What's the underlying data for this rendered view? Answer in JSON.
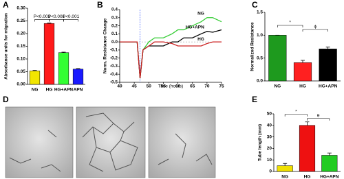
{
  "panel_labels": [
    "A",
    "B",
    "C",
    "D",
    "E"
  ],
  "chart_data": [
    {
      "type": "bar",
      "y_label": "Absorbance units for migration",
      "categories": [
        "NG",
        "HG",
        "HG+APN",
        "APN"
      ],
      "values": [
        0.053,
        0.24,
        0.125,
        0.06
      ],
      "errors": [
        0.002,
        0.002,
        0.002,
        0.002
      ],
      "colors": [
        "#f2e600",
        "#ff1a1a",
        "#33ff33",
        "#1a1aff"
      ],
      "ylim": [
        0,
        0.3
      ],
      "yticks": [
        {
          "value": 0,
          "label": "0.00"
        },
        0.05,
        {
          "value": 0.1,
          "label": "0.10"
        },
        0.15,
        {
          "value": 0.2,
          "label": "0.20"
        },
        0.25,
        {
          "value": 0.3,
          "label": "0.30"
        }
      ],
      "annotations": [
        "P<0.001",
        "P<0.001",
        "P<0.001"
      ]
    },
    {
      "type": "line",
      "y_label": "Norm. Resistance Change",
      "x_label": "Time (hours)",
      "x": [
        40,
        42,
        44,
        46,
        47,
        48,
        50,
        52,
        55,
        58,
        60,
        62,
        65,
        68,
        70,
        72,
        75
      ],
      "series": [
        {
          "name": "NG",
          "color": "#33cc33",
          "values": [
            0,
            0,
            0,
            0,
            -0.45,
            -0.1,
            0,
            0.05,
            0.05,
            0.1,
            0.15,
            0.15,
            0.2,
            0.25,
            0.3,
            0.3,
            0.25
          ]
        },
        {
          "name": "HG+APN",
          "color": "#000000",
          "values": [
            0,
            0,
            0,
            0,
            -0.45,
            -0.1,
            -0.05,
            -0.05,
            -0.05,
            0,
            0,
            0.05,
            0.05,
            0.1,
            0.13,
            0.12,
            0.15
          ]
        },
        {
          "name": "HG",
          "color": "#cc2222",
          "values": [
            0,
            0,
            0,
            0,
            -0.45,
            -0.1,
            -0.05,
            0,
            0,
            -0.02,
            -0.05,
            -0.05,
            -0.05,
            -0.05,
            -0.02,
            0,
            0
          ]
        }
      ],
      "vline": 47,
      "xlim": [
        40,
        75
      ],
      "xticks": [
        40,
        45,
        50,
        55,
        60,
        65,
        70,
        75
      ],
      "ylim": [
        -0.5,
        0.4
      ],
      "yticks": [
        -0.5,
        -0.4,
        -0.3,
        -0.2,
        -0.1,
        {
          "value": 0,
          "label": "0.0"
        },
        0.1,
        0.2,
        0.3,
        0.4
      ]
    },
    {
      "type": "bar",
      "y_label": "Normalized Resistance",
      "categories": [
        "NG",
        "HG",
        "HG+APN"
      ],
      "values": [
        1.0,
        0.4,
        0.7
      ],
      "errors": [
        0,
        0.05,
        0.04
      ],
      "colors": [
        "#1e9a1e",
        "#ff2020",
        "#000000"
      ],
      "ylim": [
        0,
        1.5
      ],
      "yticks": [
        {
          "value": 0,
          "label": "0.0"
        },
        0.5,
        {
          "value": 1,
          "label": "1.0"
        },
        1.5
      ],
      "annotations": [
        "*",
        "ϕ"
      ]
    },
    {
      "type": "bar",
      "y_label": "Tube length (mm)",
      "categories": [
        "NG",
        "HG",
        "HG+APN"
      ],
      "values": [
        5,
        40,
        14
      ],
      "errors": [
        2,
        3,
        2
      ],
      "colors": [
        "#f0e000",
        "#ee1111",
        "#22cc22"
      ],
      "ylim": [
        0,
        50
      ],
      "yticks": [
        0,
        10,
        20,
        30,
        40,
        50
      ],
      "annotations": [
        "*",
        "θ"
      ]
    }
  ]
}
